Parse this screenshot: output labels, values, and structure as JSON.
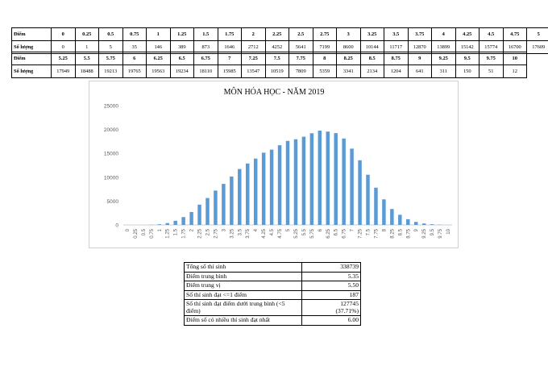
{
  "table1": {
    "label_score": "Điểm",
    "label_count": "Số lượng",
    "scores": [
      "0",
      "0.25",
      "0.5",
      "0.75",
      "1",
      "1.25",
      "1.5",
      "1.75",
      "2",
      "2.25",
      "2.5",
      "2.75",
      "3",
      "3.25",
      "3.5",
      "3.75",
      "4",
      "4.25",
      "4.5",
      "4.75",
      "5"
    ],
    "counts": [
      "0",
      "1",
      "5",
      "35",
      "146",
      "389",
      "873",
      "1646",
      "2712",
      "4252",
      "5641",
      "7199",
      "8600",
      "10144",
      "11717",
      "12870",
      "13899",
      "15142",
      "15774",
      "16700",
      "17609"
    ]
  },
  "table2": {
    "label_score": "Điểm",
    "label_count": "Số lượng",
    "scores": [
      "5.25",
      "5.5",
      "5.75",
      "6",
      "6.25",
      "6.5",
      "6.75",
      "7",
      "7.25",
      "7.5",
      "7.75",
      "8",
      "8.25",
      "8.5",
      "8.75",
      "9",
      "9.25",
      "9.5",
      "9.75",
      "10"
    ],
    "counts": [
      "17949",
      "18488",
      "19213",
      "19765",
      "19563",
      "19234",
      "18110",
      "15985",
      "13547",
      "10519",
      "7809",
      "5359",
      "3341",
      "2134",
      "1204",
      "641",
      "311",
      "150",
      "51",
      "12"
    ]
  },
  "chart_data": {
    "type": "bar",
    "title": "MÔN HÓA HỌC - NĂM 2019",
    "categories": [
      "0",
      "0.25",
      "0.5",
      "0.75",
      "1",
      "1.25",
      "1.5",
      "1.75",
      "2",
      "2.25",
      "2.5",
      "2.75",
      "3",
      "3.25",
      "3.5",
      "3.75",
      "4",
      "4.25",
      "4.5",
      "4.75",
      "5",
      "5.25",
      "5.5",
      "5.75",
      "6",
      "6.25",
      "6.5",
      "6.75",
      "7",
      "7.25",
      "7.5",
      "7.75",
      "8",
      "8.25",
      "8.5",
      "8.75",
      "9",
      "9.25",
      "9.5",
      "9.75",
      "10"
    ],
    "values": [
      0,
      1,
      5,
      35,
      146,
      389,
      873,
      1646,
      2712,
      4252,
      5641,
      7199,
      8600,
      10144,
      11717,
      12870,
      13899,
      15142,
      15774,
      16700,
      17609,
      17949,
      18488,
      19213,
      19765,
      19563,
      19234,
      18110,
      15985,
      13547,
      10519,
      7809,
      5359,
      3341,
      2134,
      1204,
      641,
      311,
      150,
      51,
      12
    ],
    "ylim": [
      0,
      25000
    ],
    "yticks": [
      "0",
      "5000",
      "10000",
      "15000",
      "20000",
      "25000"
    ],
    "grid": false,
    "bar_color": "#5b9bd5"
  },
  "stats": [
    {
      "label": "Tổng số thí sinh",
      "value": "338739"
    },
    {
      "label": "Điểm trung bình",
      "value": "5.35"
    },
    {
      "label": "Điểm trung vị",
      "value": "5.50"
    },
    {
      "label": "Số thí sinh đạt <=1 điểm",
      "value": "187"
    },
    {
      "label": "Số thí sinh đạt điểm dưới trung bình (<5 điểm)",
      "value": "127745",
      "value2": "(37.71%)"
    },
    {
      "label": "Điểm số có nhiều thí sinh đạt nhất",
      "value": "6.00"
    }
  ]
}
